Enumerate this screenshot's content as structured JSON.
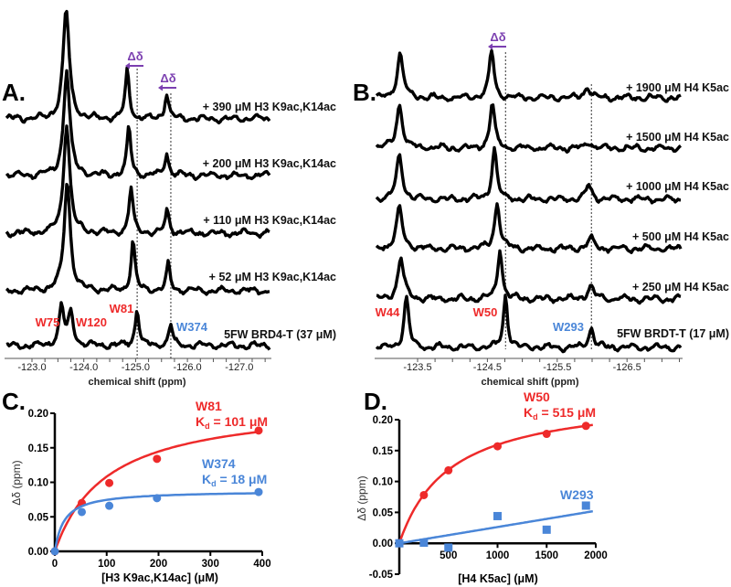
{
  "colors": {
    "red": "#ee2a2a",
    "blue": "#4a86d8",
    "purple": "#7b3fb0",
    "black": "#000000"
  },
  "panels": {
    "A": "A.",
    "B": "B.",
    "C": "C.",
    "D": "D."
  },
  "delta_label": "Δδ",
  "chart_data": [
    {
      "id": "A",
      "type": "line",
      "title": "",
      "xlabel": "chemical shift (ppm)",
      "xlim": [
        -122.5,
        -127.7
      ],
      "xticks": [
        "-123.0",
        "-124.0",
        "-125.0",
        "-126.0",
        "-127.0"
      ],
      "xtick_values": [
        -123.0,
        -124.0,
        -125.0,
        -126.0,
        -127.0
      ],
      "peak_labels": [
        {
          "text": "W75",
          "ppm": -123.57,
          "color": "red"
        },
        {
          "text": "W120",
          "ppm": -123.75,
          "color": "red"
        },
        {
          "text": "W81",
          "ppm": -125.03,
          "color": "red"
        },
        {
          "text": "W374",
          "ppm": -125.68,
          "color": "blue"
        }
      ],
      "reference_lines_ppm": [
        -125.03,
        -125.68
      ],
      "series": [
        {
          "name": "5FW BRD4-T (37 μM)",
          "peaks": [
            [
              -123.57,
              0.86,
              0.055
            ],
            [
              -123.75,
              0.72,
              0.055
            ],
            [
              -125.03,
              0.82,
              0.045
            ],
            [
              -125.68,
              0.46,
              0.045
            ]
          ]
        },
        {
          "name": "+ 52 μM H3 K9ac,K14ac",
          "peaks": [
            [
              -123.68,
              2.4,
              0.07
            ],
            [
              -124.95,
              1.1,
              0.045
            ],
            [
              -125.63,
              0.56,
              0.045
            ]
          ]
        },
        {
          "name": "+ 110 μM H3 K9ac,K14ac",
          "peaks": [
            [
              -123.67,
              2.4,
              0.07
            ],
            [
              -124.91,
              1.0,
              0.045
            ],
            [
              -125.61,
              0.5,
              0.045
            ]
          ]
        },
        {
          "name": "+ 200 μM H3 K9ac,K14ac",
          "peaks": [
            [
              -123.67,
              2.3,
              0.07
            ],
            [
              -124.87,
              1.04,
              0.045
            ],
            [
              -125.6,
              0.5,
              0.045
            ]
          ]
        },
        {
          "name": "+ 390 μM H3 K9ac,K14ac",
          "peaks": [
            [
              -123.66,
              2.4,
              0.07
            ],
            [
              -124.84,
              1.06,
              0.045
            ],
            [
              -125.6,
              0.56,
              0.045
            ]
          ]
        }
      ]
    },
    {
      "id": "B",
      "type": "line",
      "title": "",
      "xlabel": "chemical shift (ppm)",
      "xlim": [
        -122.89,
        -127.3
      ],
      "xticks": [
        "-123.5",
        "-124.5",
        "-125.5",
        "-126.5"
      ],
      "xtick_values": [
        -123.5,
        -124.5,
        -125.5,
        -126.5
      ],
      "peak_labels": [
        {
          "text": "W44",
          "ppm": -123.34,
          "color": "red"
        },
        {
          "text": "W50",
          "ppm": -124.76,
          "color": "red"
        },
        {
          "text": "W293",
          "ppm": -125.99,
          "color": "blue"
        }
      ],
      "reference_lines_ppm": [
        -124.76,
        -125.99
      ],
      "series": [
        {
          "name": "5FW BRDT-T (17 μM)",
          "peaks": [
            [
              -123.34,
              1.1,
              0.04
            ],
            [
              -124.76,
              1.16,
              0.035
            ],
            [
              -125.99,
              0.46,
              0.04
            ]
          ]
        },
        {
          "name": "+ 250 μM H4 K5ac",
          "peaks": [
            [
              -123.26,
              0.9,
              0.05
            ],
            [
              -124.68,
              1.1,
              0.04
            ],
            [
              -125.98,
              0.3,
              0.05
            ]
          ]
        },
        {
          "name": "+ 500 μM H4 K5ac",
          "peaks": [
            [
              -123.24,
              0.9,
              0.05
            ],
            [
              -124.64,
              1.0,
              0.045
            ],
            [
              -125.98,
              0.22,
              0.05
            ]
          ]
        },
        {
          "name": "+ 1000 μM H4 K5ac",
          "peaks": [
            [
              -123.24,
              0.95,
              0.05
            ],
            [
              -124.6,
              1.15,
              0.04
            ],
            [
              -125.95,
              0.3,
              0.05
            ]
          ]
        },
        {
          "name": "+ 1500 μM H4 K5ac",
          "peaks": [
            [
              -123.24,
              0.95,
              0.05
            ],
            [
              -124.57,
              1.0,
              0.04
            ],
            [
              -125.96,
              0.14,
              0.05
            ]
          ]
        },
        {
          "name": "+ 1900 μM H4 K5ac",
          "peaks": [
            [
              -123.25,
              0.96,
              0.05
            ],
            [
              -124.56,
              1.04,
              0.04
            ],
            [
              -125.93,
              0.24,
              0.05
            ]
          ]
        }
      ]
    },
    {
      "id": "C",
      "type": "scatter",
      "xlabel": "[H3 K9ac,K14ac] (μM)",
      "ylabel": "Δδ (ppm)",
      "xlim": [
        0,
        400
      ],
      "ylim": [
        0,
        0.2
      ],
      "xticks": [
        "0",
        "100",
        "200",
        "300",
        "400"
      ],
      "xtick_values": [
        0,
        100,
        200,
        300,
        400
      ],
      "yticks": [
        "0.00",
        "0.05",
        "0.10",
        "0.15",
        "0.20"
      ],
      "ytick_values": [
        0,
        0.05,
        0.1,
        0.15,
        0.2
      ],
      "series": [
        {
          "name": "W81",
          "kd_label": "K",
          "kd_sub": "d",
          "kd_value": " = 101 μM",
          "kd": 101,
          "bmax": 0.2175,
          "color": "red",
          "marker": "circle",
          "fit": "hyperbolic",
          "x": [
            0,
            52,
            105,
            197,
            393
          ],
          "y": [
            0,
            0.07,
            0.099,
            0.134,
            0.175
          ]
        },
        {
          "name": "W374",
          "kd_label": "K",
          "kd_sub": "d",
          "kd_value": " = 18 μM",
          "kd": 18,
          "bmax": 0.088,
          "color": "blue",
          "marker": "circle",
          "fit": "hyperbolic",
          "x": [
            0,
            52,
            105,
            197,
            393
          ],
          "y": [
            0,
            0.057,
            0.066,
            0.077,
            0.086
          ]
        }
      ]
    },
    {
      "id": "D",
      "type": "scatter",
      "xlabel": "[H4 K5ac] (μM)",
      "ylabel": "Δδ (ppm)",
      "xlim": [
        0,
        2000
      ],
      "ylim": [
        -0.05,
        0.2
      ],
      "xticks": [
        "500",
        "1000",
        "1500",
        "2000"
      ],
      "xtick_values": [
        500,
        1000,
        1500,
        2000
      ],
      "yticks": [
        "-0.05",
        "0.00",
        "0.05",
        "0.10",
        "0.15",
        "0.20"
      ],
      "ytick_values": [
        -0.05,
        0,
        0.05,
        0.1,
        0.15,
        0.2
      ],
      "series": [
        {
          "name": "W50",
          "kd_label": "K",
          "kd_sub": "d",
          "kd_value": " = 515 μM",
          "kd": 515,
          "bmax": 0.2415,
          "color": "red",
          "marker": "circle",
          "fit": "hyperbolic",
          "x": [
            0,
            250,
            500,
            1000,
            1500,
            1900
          ],
          "y": [
            0,
            0.078,
            0.118,
            0.157,
            0.177,
            0.19
          ]
        },
        {
          "name": "W293",
          "color": "blue",
          "marker": "square",
          "fit": "linear",
          "slope": 2.63e-05,
          "x": [
            0,
            250,
            500,
            1000,
            1500,
            1900
          ],
          "y": [
            0,
            0.001,
            -0.007,
            0.044,
            0.022,
            0.061
          ]
        }
      ]
    }
  ]
}
